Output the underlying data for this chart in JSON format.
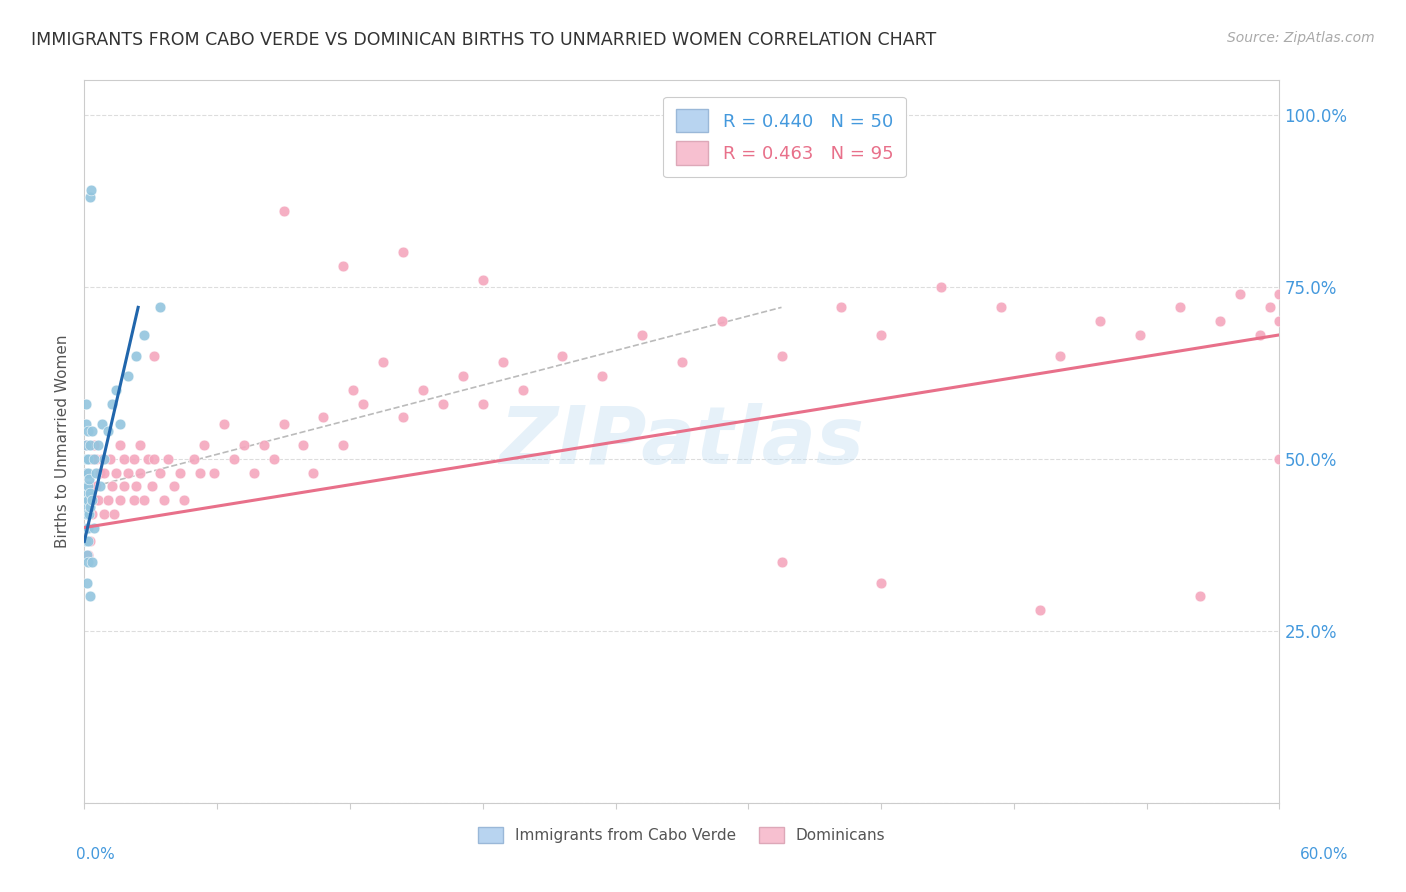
{
  "title": "IMMIGRANTS FROM CABO VERDE VS DOMINICAN BIRTHS TO UNMARRIED WOMEN CORRELATION CHART",
  "source": "Source: ZipAtlas.com",
  "ylabel": "Births to Unmarried Women",
  "cabo_verde_color": "#92c5de",
  "dominican_color": "#f4a6bd",
  "trend_cabo_color": "#2166ac",
  "trend_dominican_color": "#e8708a",
  "trend_cabo_dashed_color": "#aaaaaa",
  "watermark": "ZIPatlas",
  "background_color": "#ffffff",
  "grid_color": "#dddddd",
  "title_color": "#333333",
  "axis_color": "#4499dd",
  "xmin": 0.0,
  "xmax": 0.6,
  "ymin": 0.0,
  "ymax": 1.05,
  "cv_x": [
    0.0008,
    0.0009,
    0.001,
    0.001,
    0.001,
    0.001,
    0.001,
    0.001,
    0.001,
    0.0012,
    0.0013,
    0.0014,
    0.0015,
    0.0015,
    0.0015,
    0.0016,
    0.0017,
    0.0018,
    0.002,
    0.002,
    0.002,
    0.002,
    0.002,
    0.002,
    0.0022,
    0.0025,
    0.003,
    0.003,
    0.003,
    0.003,
    0.003,
    0.0035,
    0.004,
    0.004,
    0.004,
    0.005,
    0.005,
    0.006,
    0.007,
    0.008,
    0.009,
    0.01,
    0.012,
    0.014,
    0.016,
    0.018,
    0.022,
    0.026,
    0.03,
    0.038
  ],
  "cv_y": [
    0.42,
    0.38,
    0.44,
    0.46,
    0.48,
    0.5,
    0.52,
    0.55,
    0.58,
    0.4,
    0.43,
    0.36,
    0.32,
    0.42,
    0.5,
    0.45,
    0.38,
    0.48,
    0.35,
    0.4,
    0.44,
    0.46,
    0.5,
    0.54,
    0.42,
    0.47,
    0.3,
    0.43,
    0.45,
    0.52,
    0.88,
    0.89,
    0.35,
    0.44,
    0.54,
    0.4,
    0.5,
    0.48,
    0.52,
    0.46,
    0.55,
    0.5,
    0.54,
    0.58,
    0.6,
    0.55,
    0.62,
    0.65,
    0.68,
    0.72
  ],
  "dom_x": [
    0.001,
    0.001,
    0.001,
    0.0015,
    0.002,
    0.002,
    0.002,
    0.003,
    0.003,
    0.004,
    0.004,
    0.005,
    0.005,
    0.006,
    0.006,
    0.007,
    0.008,
    0.009,
    0.01,
    0.01,
    0.012,
    0.013,
    0.014,
    0.015,
    0.016,
    0.018,
    0.018,
    0.02,
    0.02,
    0.022,
    0.025,
    0.025,
    0.026,
    0.028,
    0.028,
    0.03,
    0.032,
    0.034,
    0.035,
    0.038,
    0.04,
    0.042,
    0.045,
    0.048,
    0.05,
    0.055,
    0.058,
    0.06,
    0.065,
    0.07,
    0.075,
    0.08,
    0.085,
    0.09,
    0.095,
    0.1,
    0.11,
    0.115,
    0.12,
    0.13,
    0.135,
    0.14,
    0.15,
    0.16,
    0.17,
    0.18,
    0.19,
    0.2,
    0.21,
    0.22,
    0.24,
    0.26,
    0.28,
    0.3,
    0.32,
    0.35,
    0.38,
    0.4,
    0.43,
    0.46,
    0.49,
    0.51,
    0.53,
    0.55,
    0.57,
    0.58,
    0.59,
    0.595,
    0.6,
    0.6,
    0.6,
    0.605,
    0.61,
    0.615,
    0.62
  ],
  "dom_y": [
    0.44,
    0.48,
    0.52,
    0.42,
    0.36,
    0.46,
    0.5,
    0.38,
    0.5,
    0.42,
    0.5,
    0.44,
    0.52,
    0.46,
    0.5,
    0.44,
    0.48,
    0.5,
    0.42,
    0.48,
    0.44,
    0.5,
    0.46,
    0.42,
    0.48,
    0.44,
    0.52,
    0.46,
    0.5,
    0.48,
    0.44,
    0.5,
    0.46,
    0.48,
    0.52,
    0.44,
    0.5,
    0.46,
    0.5,
    0.48,
    0.44,
    0.5,
    0.46,
    0.48,
    0.44,
    0.5,
    0.48,
    0.52,
    0.48,
    0.55,
    0.5,
    0.52,
    0.48,
    0.52,
    0.5,
    0.55,
    0.52,
    0.48,
    0.56,
    0.52,
    0.6,
    0.58,
    0.64,
    0.56,
    0.6,
    0.58,
    0.62,
    0.58,
    0.64,
    0.6,
    0.65,
    0.62,
    0.68,
    0.64,
    0.7,
    0.65,
    0.72,
    0.68,
    0.75,
    0.72,
    0.65,
    0.7,
    0.68,
    0.72,
    0.7,
    0.74,
    0.68,
    0.72,
    0.7,
    0.74,
    0.5,
    0.52,
    0.5,
    0.48,
    0.52
  ],
  "dom_outliers_x": [
    0.035,
    0.1,
    0.13,
    0.16,
    0.2,
    0.35,
    0.4,
    0.48,
    0.56
  ],
  "dom_outliers_y": [
    0.65,
    0.86,
    0.78,
    0.8,
    0.76,
    0.35,
    0.32,
    0.28,
    0.3
  ],
  "cv_trend_x0": 0.0,
  "cv_trend_x1": 0.027,
  "cv_trend_y0": 0.38,
  "cv_trend_y1": 0.72,
  "cv_trend_dash_x0": 0.005,
  "cv_trend_dash_x1": 0.35,
  "cv_trend_dash_y0": 0.46,
  "cv_trend_dash_y1": 0.72,
  "dom_trend_x0": 0.0,
  "dom_trend_x1": 0.6,
  "dom_trend_y0": 0.4,
  "dom_trend_y1": 0.68
}
